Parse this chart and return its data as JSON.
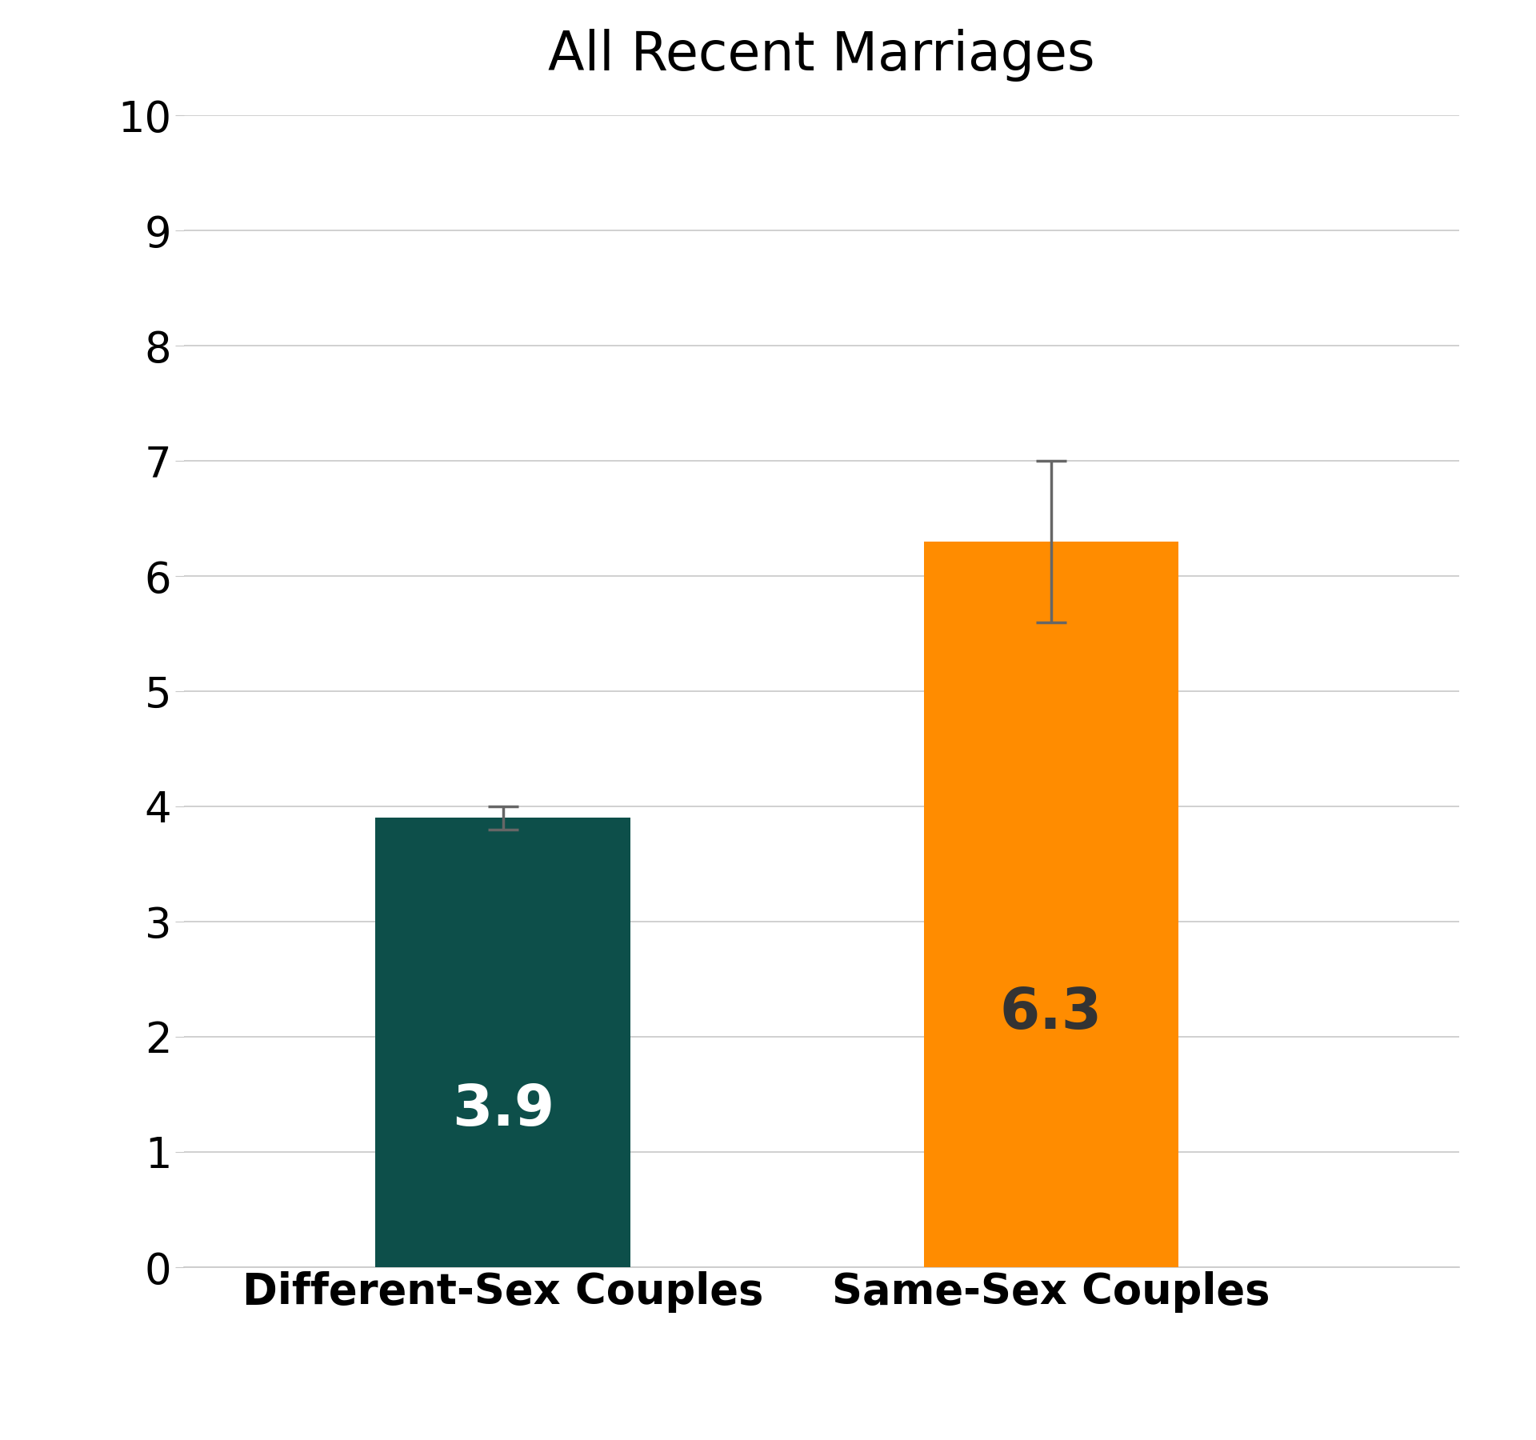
{
  "title": "All Recent Marriages",
  "categories": [
    "Different-Sex Couples",
    "Same-Sex Couples"
  ],
  "values": [
    3.9,
    6.3
  ],
  "errors": [
    0.1,
    0.7
  ],
  "bar_colors": [
    "#0d4f4a",
    "#ff8c00"
  ],
  "label_colors": [
    "white",
    "#333333"
  ],
  "ylim": [
    0,
    10
  ],
  "yticks": [
    0,
    1,
    2,
    3,
    4,
    5,
    6,
    7,
    8,
    9,
    10
  ],
  "title_fontsize": 48,
  "tick_fontsize": 38,
  "label_fontsize": 38,
  "value_fontsize": 52,
  "background_color": "#ffffff",
  "grid_color": "#c8c8c8",
  "error_color": "#666666",
  "bar_positions": [
    0.25,
    0.68
  ],
  "bar_width": 0.2
}
